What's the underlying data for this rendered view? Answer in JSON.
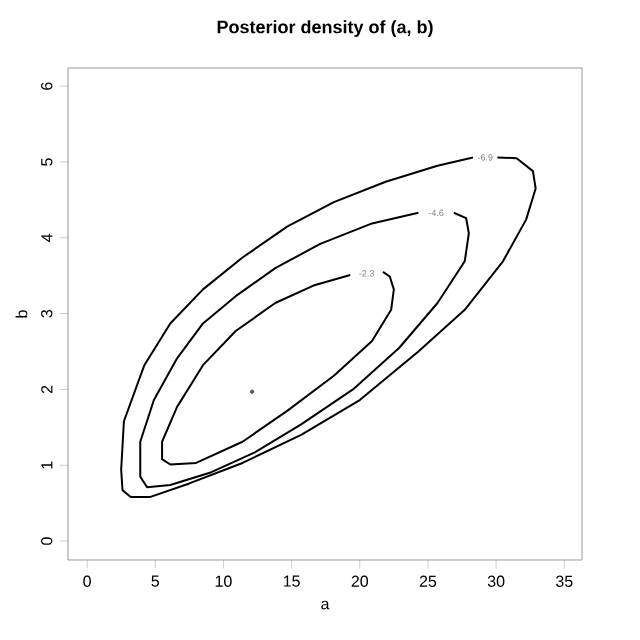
{
  "chart_data": {
    "type": "line",
    "title": "Posterior density of (a, b)",
    "xlabel": "a",
    "ylabel": "b",
    "xlim": [
      -1.4,
      36.3
    ],
    "ylim": [
      -0.25,
      6.24
    ],
    "xticks": [
      0,
      5,
      10,
      15,
      20,
      25,
      30,
      35
    ],
    "yticks": [
      0,
      1,
      2,
      3,
      4,
      5,
      6
    ],
    "grid": false,
    "legend": false,
    "marker": "none",
    "line_style": "solid",
    "series": [
      {
        "name": "-6.9",
        "color": "#000000",
        "x": [
          28.3,
          25.7,
          21.9,
          18.1,
          14.7,
          11.4,
          8.5,
          6.1,
          4.2,
          2.7,
          2.5,
          2.6,
          3.2,
          4.6,
          7.5,
          11.4,
          15.7,
          20.0,
          24.3,
          27.7,
          30.5,
          32.2,
          32.9,
          32.7,
          31.5,
          30.1
        ],
        "values": [
          5.06,
          4.95,
          4.74,
          4.47,
          4.15,
          3.74,
          3.32,
          2.87,
          2.32,
          1.58,
          0.94,
          0.67,
          0.58,
          0.58,
          0.76,
          1.03,
          1.4,
          1.86,
          2.5,
          3.05,
          3.69,
          4.24,
          4.65,
          4.88,
          5.05,
          5.06
        ]
      },
      {
        "name": "-4.6",
        "color": "#000000",
        "x": [
          24.3,
          20.9,
          17.1,
          13.8,
          10.9,
          8.5,
          6.6,
          4.9,
          3.9,
          3.9,
          4.4,
          6.1,
          9.0,
          12.3,
          15.7,
          19.5,
          22.9,
          25.7,
          27.7,
          28.0,
          27.8,
          26.9
        ],
        "values": [
          4.33,
          4.19,
          3.92,
          3.6,
          3.23,
          2.87,
          2.41,
          1.86,
          1.31,
          0.85,
          0.71,
          0.74,
          0.9,
          1.17,
          1.54,
          2.0,
          2.55,
          3.14,
          3.69,
          4.06,
          4.26,
          4.33
        ]
      },
      {
        "name": "-2.3",
        "color": "#000000",
        "x": [
          19.3,
          16.6,
          13.8,
          10.9,
          8.5,
          6.6,
          5.5,
          5.5,
          6.1,
          8.0,
          11.4,
          14.7,
          18.1,
          20.9,
          22.3,
          22.5,
          22.2,
          21.7
        ],
        "values": [
          3.51,
          3.37,
          3.14,
          2.77,
          2.32,
          1.77,
          1.31,
          1.08,
          1.01,
          1.03,
          1.31,
          1.72,
          2.18,
          2.64,
          3.05,
          3.32,
          3.49,
          3.55
        ]
      },
      {
        "type": "scatter",
        "color": "#555555",
        "x": [
          12.1
        ],
        "values": [
          1.97
        ]
      }
    ]
  }
}
